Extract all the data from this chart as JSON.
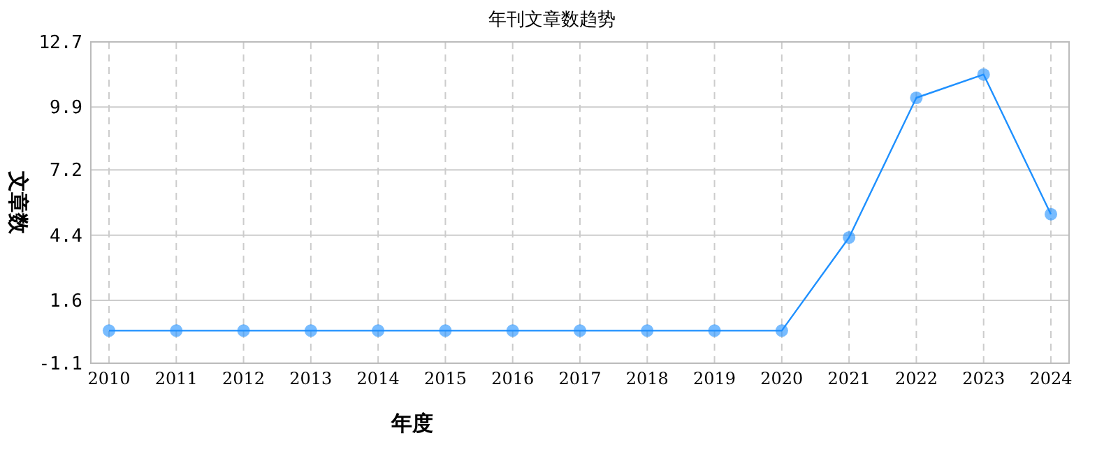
{
  "chart_data": {
    "type": "line",
    "title": "年刊文章数趋势",
    "xlabel": "年度",
    "ylabel": "文章数",
    "categories": [
      "2010",
      "2011",
      "2012",
      "2013",
      "2014",
      "2015",
      "2016",
      "2017",
      "2018",
      "2019",
      "2020",
      "2021",
      "2022",
      "2023",
      "2024"
    ],
    "series": [
      {
        "color": "#1e90ff",
        "values": [
          0.3,
          0.3,
          0.3,
          0.3,
          0.3,
          0.3,
          0.3,
          0.3,
          0.3,
          0.3,
          0.3,
          4.3,
          10.3,
          11.3,
          5.3
        ]
      }
    ],
    "ylim": [
      -1.1,
      12.7
    ],
    "yticks": [
      -1.1,
      1.6,
      4.4,
      7.2,
      9.9,
      12.7
    ],
    "grid": true,
    "marker": "circle",
    "line_style": "solid"
  }
}
